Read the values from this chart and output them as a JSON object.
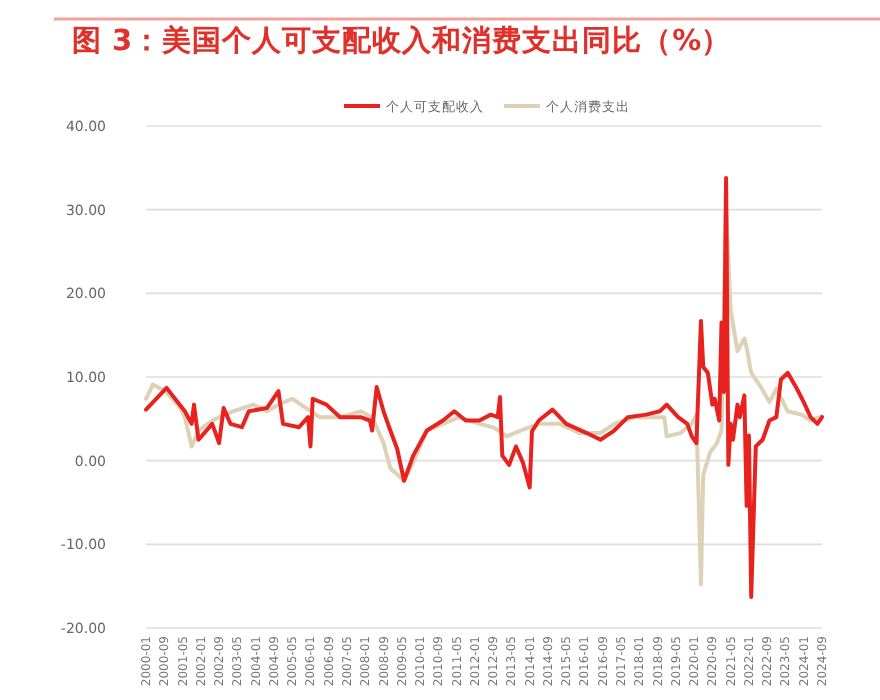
{
  "chart_data": {
    "type": "line",
    "title": "图 3：美国个人可支配收入和消费支出同比（%）",
    "xlim": [
      "2000-01",
      "2024-09"
    ],
    "xticks": [
      "2000-01",
      "2000-09",
      "2001-05",
      "2002-01",
      "2002-09",
      "2003-05",
      "2004-01",
      "2004-09",
      "2005-05",
      "2006-01",
      "2006-09",
      "2007-05",
      "2008-01",
      "2008-09",
      "2009-05",
      "2010-01",
      "2010-09",
      "2011-05",
      "2012-01",
      "2012-09",
      "2013-05",
      "2014-01",
      "2014-09",
      "2015-05",
      "2016-01",
      "2016-09",
      "2017-05",
      "2018-01",
      "2018-09",
      "2019-05",
      "2020-01",
      "2020-09",
      "2021-05",
      "2022-01",
      "2022-09",
      "2023-05",
      "2024-01",
      "2024-09"
    ],
    "ylim": [
      -20,
      40
    ],
    "yticks": [
      {
        "value": -20,
        "label": "-20.00"
      },
      {
        "value": -10,
        "label": "-10.00"
      },
      {
        "value": 0,
        "label": "0.00"
      },
      {
        "value": 10,
        "label": "10.00"
      },
      {
        "value": 20,
        "label": "20.00"
      },
      {
        "value": 30,
        "label": "30.00"
      },
      {
        "value": 40,
        "label": "40.00"
      }
    ],
    "grid": "y",
    "legend": "top",
    "series": [
      {
        "name": "个人可支配收入",
        "color": "#e8231f",
        "x": [
          "2000-01",
          "2000-10",
          "2001-06",
          "2001-09",
          "2001-10",
          "2001-12",
          "2002-06",
          "2002-09",
          "2002-11",
          "2003-02",
          "2003-07",
          "2003-10",
          "2004-06",
          "2004-11",
          "2005-01",
          "2005-08",
          "2005-12",
          "2006-01",
          "2006-02",
          "2006-08",
          "2007-02",
          "2007-11",
          "2008-03",
          "2008-04",
          "2008-06",
          "2008-09",
          "2008-12",
          "2009-03",
          "2009-06",
          "2009-10",
          "2010-04",
          "2010-11",
          "2011-04",
          "2011-09",
          "2012-03",
          "2012-08",
          "2012-11",
          "2012-12",
          "2013-01",
          "2013-04",
          "2013-07",
          "2013-10",
          "2014-01",
          "2014-02",
          "2014-05",
          "2014-11",
          "2015-05",
          "2016-02",
          "2016-08",
          "2017-02",
          "2017-08",
          "2018-04",
          "2018-10",
          "2019-01",
          "2019-06",
          "2019-10",
          "2019-12",
          "2020-02",
          "2020-04",
          "2020-05",
          "2020-07",
          "2020-09",
          "2020-10",
          "2020-12",
          "2021-01",
          "2021-02",
          "2021-03",
          "2021-04",
          "2021-05",
          "2021-06",
          "2021-08",
          "2021-09",
          "2021-11",
          "2021-12",
          "2022-01",
          "2022-02",
          "2022-04",
          "2022-07",
          "2022-10",
          "2023-01",
          "2023-03",
          "2023-06",
          "2023-10",
          "2024-01",
          "2024-04",
          "2024-07",
          "2024-09"
        ],
        "values": [
          6.1,
          8.7,
          5.9,
          4.4,
          6.7,
          2.5,
          4.4,
          2.1,
          6.3,
          4.4,
          4.0,
          5.9,
          6.3,
          8.3,
          4.4,
          4.0,
          5.2,
          1.7,
          7.4,
          6.7,
          5.2,
          5.2,
          4.8,
          3.6,
          8.8,
          5.9,
          3.6,
          1.4,
          -2.4,
          0.6,
          3.6,
          4.8,
          5.9,
          4.8,
          4.8,
          5.5,
          5.2,
          7.6,
          0.6,
          -0.5,
          1.7,
          -0.2,
          -3.2,
          3.5,
          4.8,
          6.1,
          4.4,
          3.3,
          2.5,
          3.6,
          5.2,
          5.5,
          5.9,
          6.7,
          5.2,
          4.4,
          2.9,
          2.1,
          16.7,
          11.2,
          10.5,
          6.7,
          7.4,
          4.8,
          16.5,
          8.2,
          33.8,
          -0.5,
          4.4,
          2.5,
          6.7,
          5.2,
          7.8,
          -5.4,
          3.0,
          -16.3,
          1.7,
          2.5,
          4.8,
          5.2,
          9.7,
          10.5,
          8.6,
          7.0,
          5.2,
          4.4,
          5.2
        ]
      },
      {
        "name": "个人消费支出",
        "color": "#ddd2b8",
        "x": [
          "2000-01",
          "2000-04",
          "2000-10",
          "2001-04",
          "2001-06",
          "2001-09",
          "2001-12",
          "2002-06",
          "2003-03",
          "2003-12",
          "2004-06",
          "2004-11",
          "2005-05",
          "2005-11",
          "2006-05",
          "2007-02",
          "2007-11",
          "2008-04",
          "2008-09",
          "2008-12",
          "2009-06",
          "2009-10",
          "2010-04",
          "2010-11",
          "2011-06",
          "2012-03",
          "2012-09",
          "2013-03",
          "2013-09",
          "2014-05",
          "2015-02",
          "2015-11",
          "2016-08",
          "2017-02",
          "2017-11",
          "2018-07",
          "2018-12",
          "2019-01",
          "2019-07",
          "2019-12",
          "2020-02",
          "2020-04",
          "2020-05",
          "2020-08",
          "2020-11",
          "2021-01",
          "2021-03",
          "2021-05",
          "2021-08",
          "2021-11",
          "2021-12",
          "2022-02",
          "2022-06",
          "2022-10",
          "2023-01",
          "2023-06",
          "2023-12",
          "2024-04",
          "2024-09"
        ],
        "values": [
          7.4,
          9.1,
          8.2,
          6.3,
          5.2,
          1.7,
          3.6,
          4.8,
          5.9,
          6.7,
          5.9,
          6.7,
          7.4,
          6.3,
          5.2,
          5.2,
          5.9,
          5.2,
          2.1,
          -0.9,
          -2.4,
          -0.2,
          3.6,
          4.4,
          5.2,
          4.4,
          4.0,
          2.9,
          3.6,
          4.4,
          4.4,
          3.3,
          3.3,
          4.4,
          5.2,
          5.2,
          5.2,
          2.9,
          3.3,
          4.4,
          5.5,
          -14.8,
          -1.7,
          1.0,
          2.1,
          3.6,
          30.2,
          18.0,
          13.1,
          14.6,
          13.5,
          10.5,
          8.9,
          7.0,
          8.6,
          5.9,
          5.5,
          4.8,
          5.3
        ]
      }
    ]
  }
}
